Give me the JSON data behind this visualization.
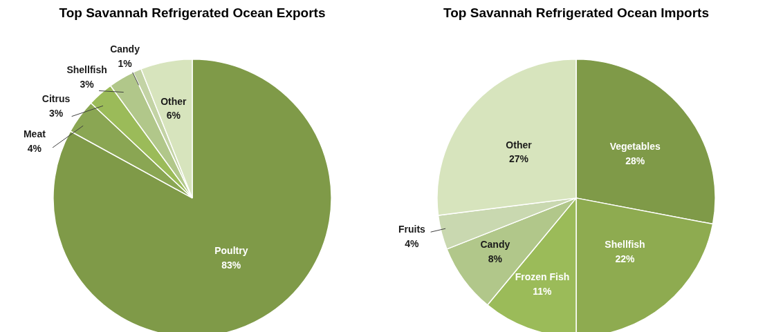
{
  "chart_data": [
    {
      "type": "pie",
      "title": "Top Savannah Refrigerated Ocean Exports",
      "categories": [
        "Poultry",
        "Meat",
        "Citrus",
        "Shellfish",
        "Candy",
        "Other"
      ],
      "values": [
        83,
        4,
        3,
        3,
        1,
        6
      ],
      "colors": [
        "#7f9a48",
        "#8aa653",
        "#9bbb59",
        "#b1c78a",
        "#c3d3a5",
        "#d7e4bd"
      ],
      "value_labels": [
        "83%",
        "4%",
        "3%",
        "3%",
        "1%",
        "6%"
      ]
    },
    {
      "type": "pie",
      "title": "Top Savannah Refrigerated Ocean Imports",
      "categories": [
        "Vegetables",
        "Shellfish",
        "Frozen Fish",
        "Candy",
        "Fruits",
        "Other"
      ],
      "values": [
        28,
        22,
        11,
        8,
        4,
        27
      ],
      "colors": [
        "#7f9a48",
        "#8eab50",
        "#9bbb59",
        "#b1c78a",
        "#c9d8b0",
        "#d7e4bd"
      ],
      "value_labels": [
        "28%",
        "22%",
        "11%",
        "8%",
        "4%",
        "27%"
      ]
    }
  ]
}
